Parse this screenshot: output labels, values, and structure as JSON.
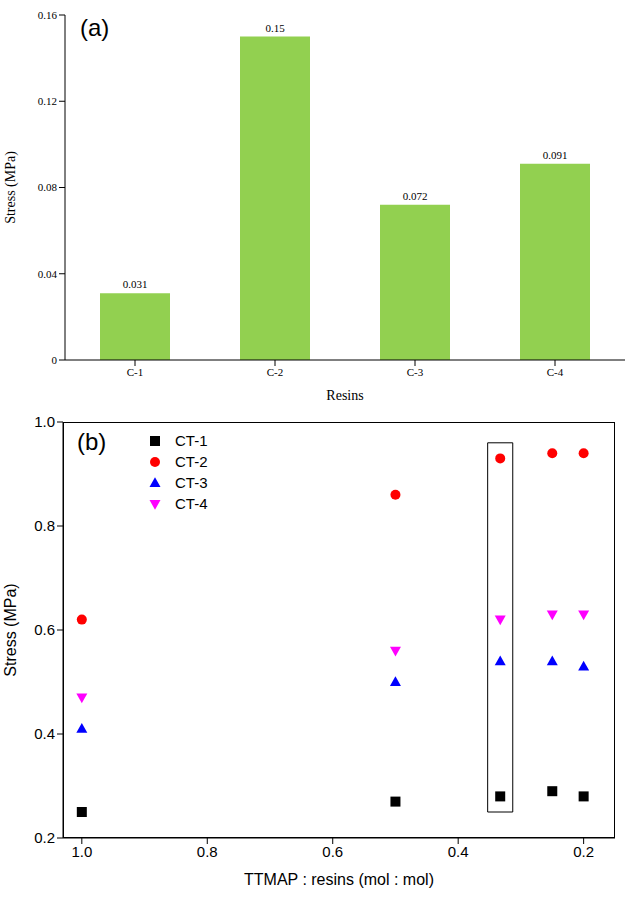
{
  "chart_data": [
    {
      "type": "bar",
      "title": "(a)",
      "categories": [
        "C-1",
        "C-2",
        "C-3",
        "C-4"
      ],
      "values": [
        0.031,
        0.15,
        0.072,
        0.091
      ],
      "color": "#92d050",
      "ylim": [
        0,
        0.16
      ],
      "yticks": [
        0,
        0.04,
        0.08,
        0.12,
        0.16
      ],
      "x_label": "Resins",
      "y_label": "Stress (MPa)",
      "data_labels": true
    },
    {
      "type": "scatter",
      "title": "(b)",
      "x": [
        1,
        0.5,
        0.333,
        0.25,
        0.2
      ],
      "series": [
        {
          "name": "CT-1",
          "color": "#000000",
          "marker": "square",
          "values": [
            0.25,
            0.27,
            0.28,
            0.29,
            0.28
          ]
        },
        {
          "name": "CT-2",
          "color": "#ff0000",
          "marker": "circle",
          "values": [
            0.62,
            0.86,
            0.93,
            0.94,
            0.94
          ]
        },
        {
          "name": "CT-3",
          "color": "#0000ff",
          "marker": "triangle",
          "values": [
            0.41,
            0.5,
            0.54,
            0.54,
            0.53
          ]
        },
        {
          "name": "CT-4",
          "color": "#ff00ff",
          "marker": "triangle_down",
          "values": [
            0.47,
            0.56,
            0.62,
            0.63,
            0.63
          ]
        }
      ],
      "xlim": [
        1.03,
        0.15
      ],
      "xticks": [
        {
          "value": 1,
          "label": "1.0"
        },
        0.8,
        0.6,
        0.4,
        0.2
      ],
      "ylim": [
        0.2,
        1.0
      ],
      "yticks": [
        0.2,
        0.4,
        0.6,
        0.8,
        {
          "value": 1,
          "label": "1.0"
        }
      ],
      "x_label": "TTMAP : resins (mol : mol)",
      "y_label": "Stress (MPa)",
      "legend": "upper left"
    }
  ]
}
